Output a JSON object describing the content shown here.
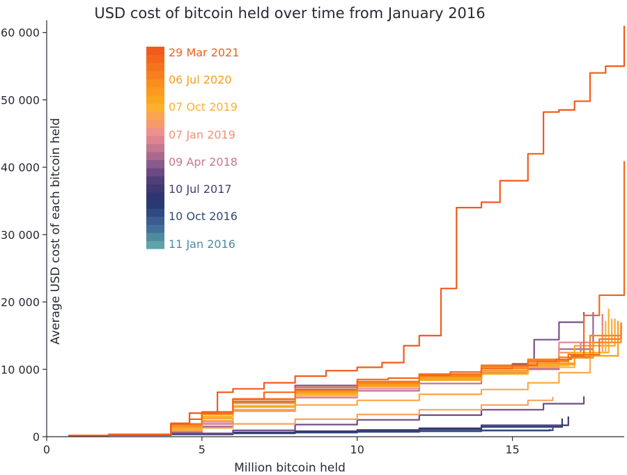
{
  "chart_data": {
    "type": "line",
    "title": "USD cost of bitcoin held over time from January 2016",
    "xlabel": "Million bitcoin held",
    "ylabel": "Average USD cost of each bitcoin held",
    "xlim": [
      0,
      18.6
    ],
    "ylim": [
      0,
      61000
    ],
    "x_ticks": [
      0,
      5,
      10,
      15
    ],
    "x_tick_labels": [
      "0",
      "5",
      "10",
      "15"
    ],
    "y_ticks": [
      0,
      10000,
      20000,
      30000,
      40000,
      50000,
      60000
    ],
    "y_tick_labels": [
      "0",
      "10 000",
      "20 000",
      "30 000",
      "40 000",
      "50 000",
      "60 000"
    ],
    "grid": false,
    "legend": {
      "placement": "top-left",
      "type": "color-scale",
      "colors": [
        "#5fa3a8",
        "#4f8a9e",
        "#42709a",
        "#3a5c8f",
        "#2e4a80",
        "#283a72",
        "#2f3570",
        "#3f3872",
        "#533f78",
        "#6a4a82",
        "#8a5a8a",
        "#a8698f",
        "#c5778f",
        "#de8490",
        "#f0908a",
        "#f79a6a",
        "#fba550",
        "#fdb02e",
        "#fca51f",
        "#fb9a1e",
        "#f98d1d",
        "#f7801d",
        "#f5731c",
        "#f4661c",
        "#f25a1b"
      ],
      "labels": [
        "29 Mar 2021",
        "06 Jul 2020",
        "07 Oct 2019",
        "07 Jan 2019",
        "09 Apr 2018",
        "10 Jul 2017",
        "10 Oct 2016",
        "11 Jan 2016"
      ],
      "label_colors": [
        "#f2601a",
        "#f79b1e",
        "#fbb02e",
        "#f29070",
        "#c8768f",
        "#4a3a6e",
        "#2a4a72",
        "#4f8a9e"
      ]
    },
    "series": [
      {
        "color": "#5b9aa8",
        "points": [
          [
            0.7,
            150
          ],
          [
            2,
            250
          ],
          [
            4,
            380
          ],
          [
            6,
            520
          ],
          [
            8,
            620
          ],
          [
            10,
            720
          ],
          [
            12,
            820
          ],
          [
            14,
            920
          ],
          [
            16.2,
            1000
          ]
        ]
      },
      {
        "color": "#3f6c96",
        "points": [
          [
            0.7,
            120
          ],
          [
            2,
            220
          ],
          [
            4,
            350
          ],
          [
            6,
            500
          ],
          [
            8,
            610
          ],
          [
            10,
            700
          ],
          [
            12,
            800
          ],
          [
            14,
            900
          ],
          [
            16.2,
            1150
          ]
        ]
      },
      {
        "color": "#2e4680",
        "points": [
          [
            0.7,
            120
          ],
          [
            2,
            220
          ],
          [
            4,
            360
          ],
          [
            6,
            520
          ],
          [
            8,
            640
          ],
          [
            10,
            740
          ],
          [
            12,
            840
          ],
          [
            14,
            950
          ],
          [
            16.3,
            1300
          ]
        ]
      },
      {
        "color": "#2d3b74",
        "points": [
          [
            0.7,
            150
          ],
          [
            2,
            260
          ],
          [
            4,
            420
          ],
          [
            6,
            620
          ],
          [
            8,
            780
          ],
          [
            10,
            920
          ],
          [
            12,
            1100
          ],
          [
            14,
            1450
          ],
          [
            16.6,
            2700
          ]
        ]
      },
      {
        "color": "#3d3870",
        "points": [
          [
            0.7,
            150
          ],
          [
            2,
            260
          ],
          [
            4,
            420
          ],
          [
            6,
            650
          ],
          [
            8,
            820
          ],
          [
            10,
            1000
          ],
          [
            12,
            1250
          ],
          [
            14,
            1700
          ],
          [
            16.8,
            3000
          ]
        ]
      },
      {
        "color": "#6d4c85",
        "points": [
          [
            0.7,
            150
          ],
          [
            2,
            260
          ],
          [
            4,
            500
          ],
          [
            6,
            950
          ],
          [
            8,
            1800
          ],
          [
            10,
            2500
          ],
          [
            12,
            3200
          ],
          [
            14,
            4000
          ],
          [
            16,
            4900
          ],
          [
            17.3,
            6000
          ]
        ]
      },
      {
        "color": "#7c4f88",
        "points": [
          [
            0.7,
            150
          ],
          [
            2,
            280
          ],
          [
            4,
            600
          ],
          [
            5,
            1500
          ],
          [
            6,
            5600
          ],
          [
            8,
            7600
          ],
          [
            10,
            7900
          ],
          [
            12,
            8800
          ],
          [
            14,
            10100
          ],
          [
            15,
            10800
          ],
          [
            15.7,
            14400
          ],
          [
            16.5,
            17000
          ],
          [
            17.3,
            18500
          ]
        ]
      },
      {
        "color": "#9e628c",
        "points": [
          [
            0.7,
            150
          ],
          [
            2,
            300
          ],
          [
            4,
            700
          ],
          [
            5,
            1500
          ],
          [
            6,
            5200
          ],
          [
            8,
            7000
          ],
          [
            10,
            7600
          ],
          [
            12,
            8500
          ],
          [
            14,
            9500
          ],
          [
            15.5,
            10200
          ],
          [
            16.5,
            13000
          ],
          [
            17.6,
            18500
          ]
        ]
      },
      {
        "color": "#c4748f",
        "points": [
          [
            0.7,
            150
          ],
          [
            2,
            300
          ],
          [
            4,
            800
          ],
          [
            5,
            1900
          ],
          [
            6,
            3800
          ],
          [
            8,
            5800
          ],
          [
            10,
            6800
          ],
          [
            12,
            7900
          ],
          [
            14,
            9300
          ],
          [
            15.5,
            10000
          ],
          [
            16.5,
            12500
          ],
          [
            17.2,
            14000
          ],
          [
            17.9,
            18200
          ]
        ]
      },
      {
        "color": "#e58890",
        "points": [
          [
            0.7,
            150
          ],
          [
            2,
            300
          ],
          [
            4,
            900
          ],
          [
            5,
            2200
          ],
          [
            6,
            4000
          ],
          [
            8,
            5900
          ],
          [
            10,
            7100
          ],
          [
            12,
            8400
          ],
          [
            14,
            9700
          ],
          [
            15.5,
            10500
          ],
          [
            16.5,
            14000
          ],
          [
            17.9,
            18000
          ]
        ]
      },
      {
        "color": "#f49a7a",
        "points": [
          [
            0.7,
            150
          ],
          [
            2,
            320
          ],
          [
            4,
            1000
          ],
          [
            5,
            2700
          ],
          [
            6,
            4500
          ],
          [
            8,
            5900
          ],
          [
            10,
            7400
          ],
          [
            12,
            8600
          ],
          [
            14,
            10200
          ],
          [
            15.5,
            11000
          ],
          [
            16.5,
            12500
          ],
          [
            17.9,
            16500
          ]
        ]
      },
      {
        "color": "#f8a25e",
        "points": [
          [
            0.7,
            150
          ],
          [
            2,
            320
          ],
          [
            4,
            900
          ],
          [
            5,
            1300
          ],
          [
            6,
            1900
          ],
          [
            8,
            2600
          ],
          [
            10,
            3300
          ],
          [
            12,
            4000
          ],
          [
            14,
            4700
          ],
          [
            15.5,
            5400
          ],
          [
            16.3,
            5900
          ]
        ]
      },
      {
        "color": "#fba84a",
        "points": [
          [
            0.7,
            150
          ],
          [
            2,
            320
          ],
          [
            4,
            1000
          ],
          [
            5,
            2400
          ],
          [
            6,
            3900
          ],
          [
            8,
            4700
          ],
          [
            10,
            5400
          ],
          [
            12,
            6300
          ],
          [
            14,
            7000
          ],
          [
            15.5,
            8000
          ],
          [
            16.5,
            9500
          ],
          [
            17.5,
            14000
          ],
          [
            18.2,
            17500
          ]
        ]
      },
      {
        "color": "#fcb030",
        "points": [
          [
            0.7,
            150
          ],
          [
            2,
            330
          ],
          [
            4,
            1200
          ],
          [
            5,
            2800
          ],
          [
            6,
            4400
          ],
          [
            8,
            6200
          ],
          [
            10,
            7700
          ],
          [
            12,
            8700
          ],
          [
            14,
            9600
          ],
          [
            15.5,
            10600
          ],
          [
            16.8,
            12500
          ],
          [
            18.1,
            19000
          ]
        ]
      },
      {
        "color": "#fdb52a",
        "points": [
          [
            0.7,
            150
          ],
          [
            2,
            330
          ],
          [
            4,
            1300
          ],
          [
            5,
            3000
          ],
          [
            6,
            4600
          ],
          [
            8,
            6400
          ],
          [
            10,
            7500
          ],
          [
            12,
            8400
          ],
          [
            14,
            9300
          ],
          [
            15.5,
            10300
          ],
          [
            17,
            12500
          ],
          [
            18.0,
            17200
          ]
        ]
      },
      {
        "color": "#fca620",
        "points": [
          [
            0.7,
            150
          ],
          [
            2,
            330
          ],
          [
            4,
            1400
          ],
          [
            5,
            3300
          ],
          [
            6,
            4400
          ],
          [
            8,
            6500
          ],
          [
            10,
            7700
          ],
          [
            12,
            8800
          ],
          [
            14,
            9800
          ],
          [
            15.5,
            10700
          ],
          [
            17,
            13500
          ],
          [
            18.3,
            17500
          ]
        ]
      },
      {
        "color": "#fb9c1e",
        "points": [
          [
            0.7,
            150
          ],
          [
            2,
            330
          ],
          [
            4,
            1400
          ],
          [
            5,
            3300
          ],
          [
            6,
            5000
          ],
          [
            8,
            6600
          ],
          [
            10,
            7600
          ],
          [
            12,
            8500
          ],
          [
            14,
            9800
          ],
          [
            15.5,
            10900
          ],
          [
            17,
            12000
          ],
          [
            18.4,
            17200
          ]
        ]
      },
      {
        "color": "#f98e1d",
        "points": [
          [
            0.7,
            150
          ],
          [
            2,
            340
          ],
          [
            4,
            1600
          ],
          [
            5,
            3400
          ],
          [
            6,
            5000
          ],
          [
            8,
            6800
          ],
          [
            10,
            7900
          ],
          [
            12,
            8900
          ],
          [
            14,
            10100
          ],
          [
            15.5,
            11300
          ],
          [
            16.8,
            11700
          ],
          [
            17.6,
            14000
          ],
          [
            18.5,
            16400
          ]
        ]
      },
      {
        "color": "#f7821d",
        "points": [
          [
            0.7,
            150
          ],
          [
            2,
            340
          ],
          [
            4,
            1800
          ],
          [
            5,
            3600
          ],
          [
            6,
            5500
          ],
          [
            8,
            6800
          ],
          [
            10,
            8000
          ],
          [
            12,
            9100
          ],
          [
            14,
            10400
          ],
          [
            15.5,
            11500
          ],
          [
            16.5,
            11800
          ],
          [
            17.5,
            15000
          ],
          [
            18.5,
            17000
          ]
        ]
      },
      {
        "color": "#f5751c",
        "points": [
          [
            0.7,
            150
          ],
          [
            2,
            340
          ],
          [
            4,
            1900
          ],
          [
            5,
            3700
          ],
          [
            6,
            5600
          ],
          [
            8,
            7300
          ],
          [
            10,
            8200
          ],
          [
            12,
            9300
          ],
          [
            14,
            10600
          ],
          [
            15.5,
            11200
          ],
          [
            16.8,
            12200
          ],
          [
            17.8,
            14500
          ],
          [
            18.5,
            16800
          ]
        ]
      },
      {
        "color": "#f4681c",
        "points": [
          [
            0.7,
            150
          ],
          [
            2,
            340
          ],
          [
            4,
            1900
          ],
          [
            4.6,
            2600
          ],
          [
            5,
            3500
          ],
          [
            6,
            5600
          ],
          [
            7,
            6600
          ],
          [
            8,
            7300
          ],
          [
            10,
            8500
          ],
          [
            11,
            8700
          ],
          [
            12,
            9100
          ],
          [
            13,
            9600
          ],
          [
            14,
            10100
          ],
          [
            15,
            10600
          ],
          [
            15.8,
            11200
          ],
          [
            16.4,
            11500
          ],
          [
            16.9,
            12000
          ],
          [
            17.3,
            18000
          ],
          [
            17.8,
            21000
          ],
          [
            18.6,
            40900
          ]
        ]
      },
      {
        "color": "#f25a1b",
        "points": [
          [
            0.7,
            150
          ],
          [
            2,
            340
          ],
          [
            4,
            2000
          ],
          [
            4.6,
            3500
          ],
          [
            5.5,
            6600
          ],
          [
            6,
            7100
          ],
          [
            7,
            8000
          ],
          [
            8,
            9000
          ],
          [
            9,
            9800
          ],
          [
            10,
            10300
          ],
          [
            10.8,
            11000
          ],
          [
            11.5,
            13500
          ],
          [
            12,
            15000
          ],
          [
            12.7,
            22000
          ],
          [
            13.2,
            34000
          ],
          [
            14,
            34800
          ],
          [
            14.6,
            38000
          ],
          [
            15.5,
            42000
          ],
          [
            16,
            48200
          ],
          [
            16.5,
            48500
          ],
          [
            17,
            49800
          ],
          [
            17.5,
            54000
          ],
          [
            18.0,
            55000
          ],
          [
            18.6,
            61000
          ]
        ]
      }
    ]
  }
}
